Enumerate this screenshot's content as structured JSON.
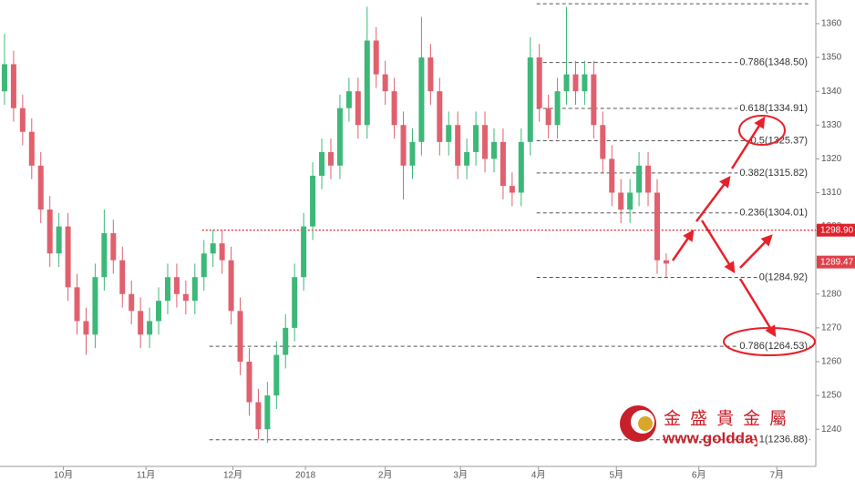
{
  "chart_data": {
    "type": "candlestick",
    "up_color": "#3cb878",
    "down_color": "#e0606e",
    "x": [
      0,
      1,
      2,
      3,
      4,
      5,
      6,
      7,
      8,
      9,
      10,
      11,
      12,
      13,
      14,
      15,
      16,
      17,
      18,
      19,
      20,
      21,
      22,
      23,
      24,
      25,
      26,
      27,
      28,
      29,
      30,
      31,
      32,
      33,
      34,
      35,
      36,
      37,
      38,
      39,
      40,
      41,
      42,
      43,
      44,
      45,
      46,
      47,
      48,
      49,
      50,
      51,
      52,
      53,
      54,
      55,
      56,
      57,
      58,
      59,
      60,
      61,
      62,
      63,
      64,
      65,
      66,
      67,
      68,
      69,
      70,
      71,
      72,
      73
    ],
    "open": [
      1340,
      1348,
      1335,
      1328,
      1318,
      1305,
      1292,
      1300,
      1282,
      1272,
      1268,
      1285,
      1298,
      1290,
      1280,
      1275,
      1268,
      1272,
      1278,
      1285,
      1280,
      1278,
      1285,
      1292,
      1295,
      1290,
      1275,
      1260,
      1248,
      1240,
      1250,
      1262,
      1270,
      1285,
      1300,
      1315,
      1322,
      1318,
      1335,
      1340,
      1330,
      1355,
      1345,
      1340,
      1330,
      1318,
      1325,
      1350,
      1340,
      1325,
      1330,
      1318,
      1322,
      1330,
      1320,
      1325,
      1312,
      1310,
      1325,
      1350,
      1335,
      1330,
      1340,
      1345,
      1340,
      1345,
      1330,
      1320,
      1310,
      1305,
      1310,
      1318,
      1310,
      1290
    ],
    "high": [
      1357,
      1352,
      1339,
      1332,
      1322,
      1309,
      1304,
      1304,
      1286,
      1276,
      1289,
      1305,
      1302,
      1294,
      1284,
      1279,
      1276,
      1282,
      1289,
      1289,
      1284,
      1289,
      1296,
      1299,
      1299,
      1294,
      1279,
      1264,
      1252,
      1254,
      1266,
      1274,
      1289,
      1304,
      1319,
      1326,
      1326,
      1339,
      1344,
      1344,
      1365,
      1359,
      1349,
      1344,
      1334,
      1329,
      1362,
      1354,
      1344,
      1334,
      1334,
      1326,
      1334,
      1334,
      1329,
      1329,
      1316,
      1329,
      1356,
      1354,
      1339,
      1344,
      1365,
      1349,
      1349,
      1349,
      1334,
      1324,
      1314,
      1314,
      1322,
      1322,
      1314,
      1292
    ],
    "low": [
      1336,
      1331,
      1324,
      1314,
      1301,
      1288,
      1288,
      1278,
      1268,
      1262,
      1264,
      1281,
      1286,
      1276,
      1271,
      1264,
      1264,
      1268,
      1274,
      1276,
      1274,
      1274,
      1281,
      1288,
      1286,
      1271,
      1256,
      1244,
      1237,
      1236,
      1246,
      1258,
      1266,
      1281,
      1296,
      1311,
      1314,
      1314,
      1331,
      1326,
      1326,
      1341,
      1336,
      1326,
      1308,
      1314,
      1321,
      1336,
      1321,
      1321,
      1314,
      1314,
      1318,
      1316,
      1316,
      1308,
      1306,
      1306,
      1321,
      1331,
      1326,
      1326,
      1336,
      1336,
      1336,
      1326,
      1316,
      1306,
      1301,
      1301,
      1306,
      1306,
      1286,
      1285
    ],
    "close": [
      1348,
      1335,
      1328,
      1318,
      1305,
      1292,
      1300,
      1282,
      1272,
      1268,
      1285,
      1298,
      1290,
      1280,
      1275,
      1268,
      1272,
      1278,
      1285,
      1280,
      1278,
      1285,
      1292,
      1295,
      1290,
      1275,
      1260,
      1248,
      1240,
      1250,
      1262,
      1270,
      1285,
      1300,
      1315,
      1322,
      1318,
      1335,
      1340,
      1330,
      1355,
      1345,
      1340,
      1330,
      1318,
      1325,
      1350,
      1340,
      1325,
      1330,
      1318,
      1322,
      1330,
      1320,
      1325,
      1312,
      1310,
      1325,
      1350,
      1335,
      1330,
      1340,
      1345,
      1340,
      1345,
      1330,
      1320,
      1310,
      1305,
      1310,
      1318,
      1310,
      1290,
      1289
    ],
    "xlim": [
      -0.5,
      89.5
    ],
    "xticks": [
      {
        "value": 6.5,
        "label": "10月"
      },
      {
        "value": 15.6,
        "label": "11月"
      },
      {
        "value": 25.2,
        "label": "12月"
      },
      {
        "value": 33.2,
        "label": "2018"
      },
      {
        "value": 42,
        "label": "2月"
      },
      {
        "value": 50.3,
        "label": "3月"
      },
      {
        "value": 58.9,
        "label": "4月"
      },
      {
        "value": 67.5,
        "label": "5月"
      },
      {
        "value": 76.6,
        "label": "6月"
      },
      {
        "value": 85.2,
        "label": "7月"
      }
    ],
    "ylim": [
      1229,
      1367
    ],
    "yticks": [
      1240,
      1250,
      1260,
      1270,
      1280,
      1290,
      1300,
      1310,
      1320,
      1330,
      1340,
      1350,
      1360
    ],
    "levels": [
      {
        "value": 1365.9,
        "from": 58.7
      },
      {
        "value": 1348.5,
        "label": "0.786(1348.50)",
        "from": 58.7
      },
      {
        "value": 1334.91,
        "label": "0.618(1334.91)",
        "from": 58.7
      },
      {
        "value": 1325.37,
        "label": "0.5(1325.37)",
        "from": 58.7
      },
      {
        "value": 1315.82,
        "label": "0.382(1315.82)",
        "from": 58.7
      },
      {
        "value": 1304.01,
        "label": "0.236(1304.01)",
        "from": 58.7
      },
      {
        "value": 1284.92,
        "label": "0(1284.92)",
        "from": 58.7
      },
      {
        "value": 1264.53,
        "label": "0.786(1264.53)",
        "from": 22.6
      },
      {
        "value": 1236.88,
        "label": "1(1236.88)",
        "from": 22.6
      }
    ],
    "reference_line": {
      "value": 1298.9,
      "label": "1298.90",
      "from": 21.8,
      "color": "#e0202a"
    },
    "last_price": {
      "value": 1289.47,
      "label": "1289.47",
      "color": "#e0404a"
    },
    "watermark": {
      "name": "金 盛 貴 金 屬",
      "url": "www.goldday.com"
    }
  }
}
